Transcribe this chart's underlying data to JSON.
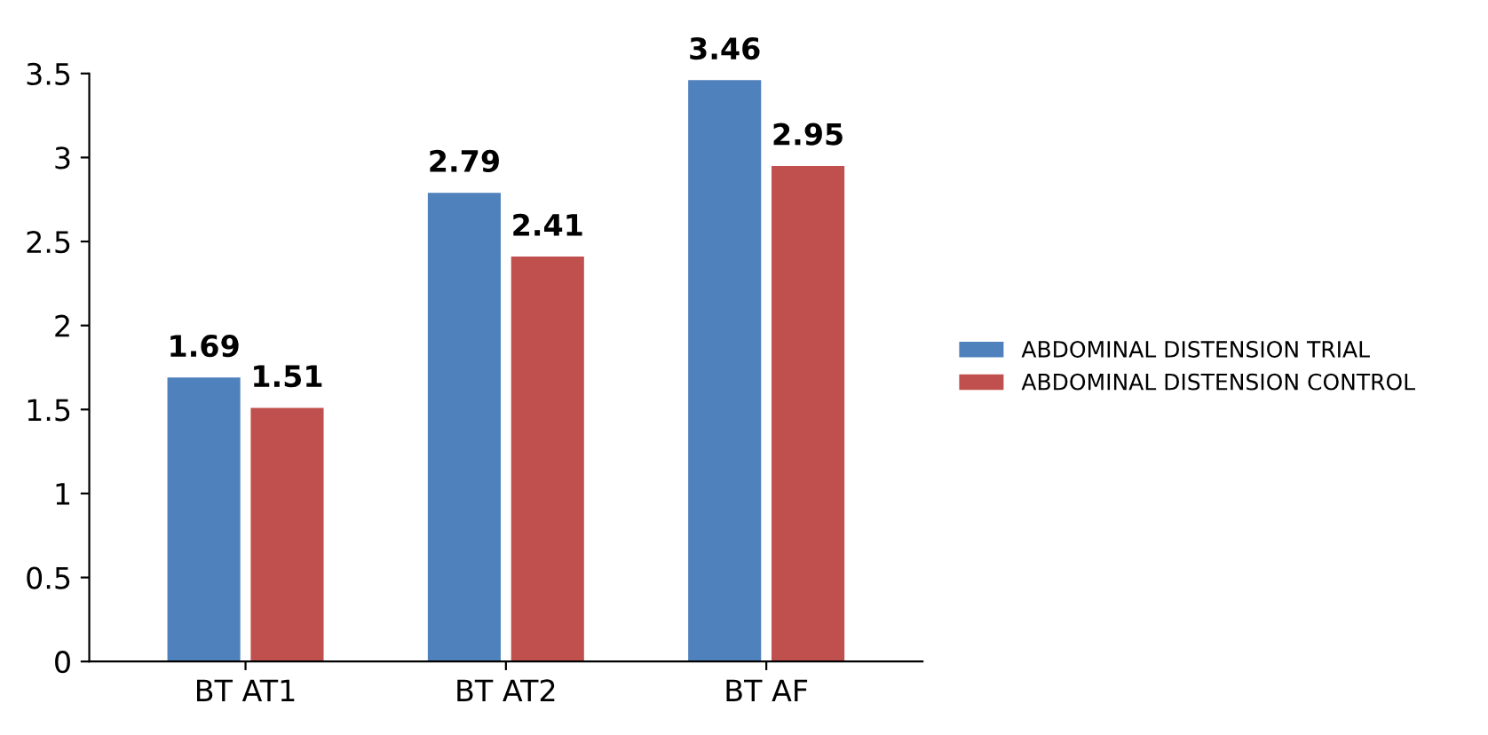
{
  "chart_data": {
    "type": "bar",
    "categories": [
      "BT AT1",
      "BT AT2",
      "BT AF"
    ],
    "series": [
      {
        "name": "ABDOMINAL DISTENSION TRIAL",
        "color": "#4f81bd",
        "values": [
          1.69,
          2.79,
          3.46
        ]
      },
      {
        "name": "ABDOMINAL DISTENSION CONTROL",
        "color": "#c0504d",
        "values": [
          1.51,
          2.41,
          2.95
        ]
      }
    ],
    "ylim": [
      0,
      3.5
    ],
    "yticks": [
      0,
      0.5,
      1,
      1.5,
      2,
      2.5,
      3,
      3.5
    ],
    "data_labels": true,
    "legend": "right",
    "grid": false
  }
}
